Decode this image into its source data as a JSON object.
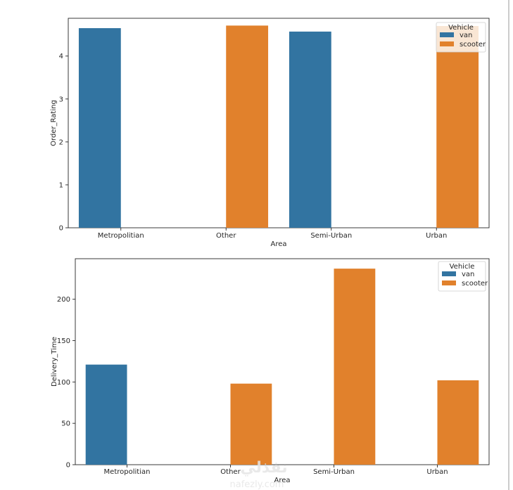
{
  "chart_data": [
    {
      "type": "bar",
      "categories": [
        "Metropolitian",
        "Other",
        "Semi-Urban",
        "Urban"
      ],
      "series": [
        {
          "name": "van",
          "values": [
            4.65,
            null,
            4.57,
            null
          ]
        },
        {
          "name": "scooter",
          "values": [
            null,
            4.71,
            null,
            4.7
          ]
        }
      ],
      "xlabel": "Area",
      "ylabel": "Order_Rating",
      "ylim": [
        0,
        4.88
      ],
      "yticks": [
        0,
        1,
        2,
        3,
        4
      ],
      "legend": {
        "title": "Vehicle",
        "placement": "top-right"
      }
    },
    {
      "type": "bar",
      "categories": [
        "Metropolitian",
        "Other",
        "Semi-Urban",
        "Urban"
      ],
      "series": [
        {
          "name": "van",
          "values": [
            121,
            null,
            null,
            null
          ]
        },
        {
          "name": "scooter",
          "values": [
            null,
            98,
            237,
            102
          ]
        }
      ],
      "xlabel": "Area",
      "ylabel": "Delivery_Time",
      "ylim": [
        0,
        249
      ],
      "yticks": [
        0,
        50,
        100,
        150,
        200
      ],
      "legend": {
        "title": "Vehicle",
        "placement": "top-right"
      }
    }
  ],
  "colors": {
    "van": "#3274a1",
    "scooter": "#e1812c"
  },
  "watermark": {
    "arabic": "نفذلي",
    "latin": "nafezly.com"
  }
}
